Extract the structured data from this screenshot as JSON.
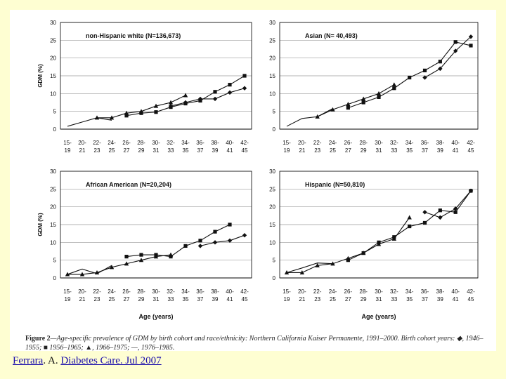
{
  "citation": {
    "author": "Ferrara",
    "middle": ". A. ",
    "journal": "Diabetes Care. Jul 2007"
  },
  "caption": {
    "label": "Figure 2",
    "text": "—Age-specific prevalence of GDM by birth cohort and race/ethnicity: Northern California Kaiser Permanente, 1991–2000. Birth cohort years: ◆, 1946–1955; ■ 1956–1965; ▲, 1966–1975; —, 1976–1985."
  },
  "chart_data": [
    {
      "type": "line",
      "title": "non-Hispanic white (N=136,673)",
      "xlabel": "",
      "ylabel": "GDM (%)",
      "ylim": [
        0,
        30
      ],
      "yticks": [
        0,
        5,
        10,
        15,
        20,
        25,
        30
      ],
      "categories": [
        "15-\n19",
        "20-\n21",
        "22-\n23",
        "24-\n25",
        "26-\n27",
        "28-\n29",
        "30-\n31",
        "32-\n33",
        "34-\n35",
        "36-\n37",
        "38-\n39",
        "40-\n41",
        "42-\n45"
      ],
      "series": [
        {
          "name": "1946-1955",
          "marker": "diamond",
          "values": [
            null,
            null,
            null,
            null,
            null,
            null,
            null,
            6.5,
            7.5,
            8.5,
            8.5,
            10.3,
            11.5
          ]
        },
        {
          "name": "1956-1965",
          "marker": "square",
          "values": [
            null,
            null,
            null,
            null,
            3.8,
            4.5,
            4.8,
            6.2,
            7.2,
            8,
            10.5,
            12.5,
            15
          ]
        },
        {
          "name": "1966-1975",
          "marker": "triangle",
          "values": [
            null,
            null,
            3.2,
            3.2,
            4.5,
            5,
            6.5,
            7.5,
            9.5,
            null,
            null,
            null,
            null
          ]
        },
        {
          "name": "1976-1985",
          "marker": "none",
          "values": [
            0.8,
            2,
            3.2,
            2.5,
            null,
            null,
            null,
            null,
            null,
            null,
            null,
            null,
            null
          ]
        }
      ]
    },
    {
      "type": "line",
      "title": "Asian (N= 40,493)",
      "xlabel": "",
      "ylabel": "",
      "ylim": [
        0,
        30
      ],
      "yticks": [
        0,
        5,
        10,
        15,
        20,
        25,
        30
      ],
      "categories": [
        "15-\n19",
        "20-\n21",
        "22-\n23",
        "24-\n25",
        "26-\n27",
        "28-\n29",
        "30-\n31",
        "32-\n33",
        "34-\n35",
        "36-\n37",
        "38-\n39",
        "40-\n41",
        "42-\n45"
      ],
      "series": [
        {
          "name": "1946-1955",
          "marker": "diamond",
          "values": [
            null,
            null,
            null,
            null,
            null,
            null,
            null,
            null,
            null,
            14.5,
            17,
            22,
            26
          ]
        },
        {
          "name": "1956-1965",
          "marker": "square",
          "values": [
            null,
            null,
            null,
            null,
            6,
            7.5,
            9,
            11.5,
            14.5,
            16.5,
            19,
            24.5,
            23.5
          ]
        },
        {
          "name": "1966-1975",
          "marker": "triangle",
          "values": [
            null,
            null,
            3.5,
            5.5,
            7,
            8.5,
            10,
            12.5,
            null,
            null,
            null,
            null,
            null
          ]
        },
        {
          "name": "1976-1985",
          "marker": "none",
          "values": [
            0.8,
            3,
            3.5,
            5.8,
            null,
            null,
            null,
            null,
            null,
            null,
            null,
            null,
            null
          ]
        }
      ]
    },
    {
      "type": "line",
      "title": "African American (N=20,204)",
      "xlabel": "Age (years)",
      "ylabel": "GDM (%)",
      "ylim": [
        0,
        30
      ],
      "yticks": [
        0,
        5,
        10,
        15,
        20,
        25,
        30
      ],
      "categories": [
        "15-\n19",
        "20-\n21",
        "22-\n23",
        "24-\n25",
        "26-\n27",
        "28-\n29",
        "30-\n31",
        "32-\n33",
        "34-\n35",
        "36-\n37",
        "38-\n39",
        "40-\n41",
        "42-\n45"
      ],
      "series": [
        {
          "name": "1946-1955",
          "marker": "diamond",
          "values": [
            null,
            null,
            null,
            null,
            null,
            null,
            null,
            null,
            null,
            9,
            10,
            10.5,
            12
          ]
        },
        {
          "name": "1956-1965",
          "marker": "square",
          "values": [
            null,
            null,
            null,
            null,
            6,
            6.5,
            6.5,
            6,
            9,
            10.5,
            13,
            15,
            null
          ]
        },
        {
          "name": "1966-1975",
          "marker": "triangle",
          "values": [
            1,
            1,
            1.5,
            3,
            4,
            5,
            6,
            6.5,
            null,
            null,
            null,
            null,
            null
          ]
        },
        {
          "name": "1976-1985",
          "marker": "none",
          "values": [
            1,
            2.5,
            1.2,
            3.5,
            null,
            null,
            null,
            null,
            null,
            null,
            null,
            null,
            null
          ]
        }
      ]
    },
    {
      "type": "line",
      "title": "Hispanic (N=50,810)",
      "xlabel": "Age (years)",
      "ylabel": "",
      "ylim": [
        0,
        30
      ],
      "yticks": [
        0,
        5,
        10,
        15,
        20,
        25,
        30
      ],
      "categories": [
        "15-\n19",
        "20-\n21",
        "22-\n23",
        "24-\n25",
        "26-\n27",
        "28-\n29",
        "30-\n31",
        "32-\n33",
        "34-\n35",
        "36-\n37",
        "38-\n39",
        "40-\n41",
        "42-\n45"
      ],
      "series": [
        {
          "name": "1946-1955",
          "marker": "diamond",
          "values": [
            null,
            null,
            null,
            null,
            null,
            null,
            null,
            null,
            null,
            18.5,
            17,
            19.5,
            24.5
          ]
        },
        {
          "name": "1956-1965",
          "marker": "square",
          "values": [
            null,
            null,
            null,
            null,
            5,
            7,
            10,
            11.5,
            14.5,
            15.5,
            19,
            18.5,
            24.5
          ]
        },
        {
          "name": "1966-1975",
          "marker": "triangle",
          "values": [
            1.5,
            1.5,
            3.5,
            4,
            5.5,
            7,
            9.5,
            11,
            17,
            null,
            null,
            null,
            null
          ]
        },
        {
          "name": "1976-1985",
          "marker": "none",
          "values": [
            1.5,
            2.8,
            4.2,
            4,
            null,
            null,
            null,
            null,
            null,
            null,
            null,
            null,
            null
          ]
        }
      ]
    }
  ]
}
